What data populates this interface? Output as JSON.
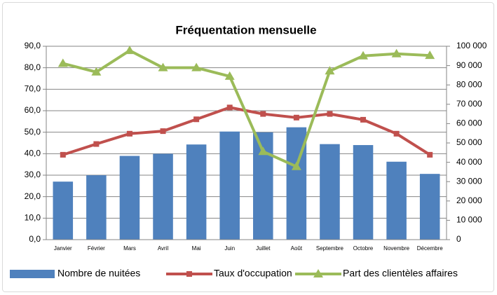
{
  "chart_data": {
    "type": "bar-line",
    "title": "Fréquentation mensuelle",
    "categories": [
      "Janvier",
      "Février",
      "Mars",
      "Avril",
      "Mai",
      "Juin",
      "Juillet",
      "Août",
      "Septembre",
      "Octobre",
      "Novembre",
      "Décembre"
    ],
    "series": [
      {
        "name": "Nombre de nuitées",
        "type": "bar",
        "axis": "y2",
        "color": "#4f81bd",
        "values": [
          30000,
          33300,
          43300,
          44400,
          49200,
          55900,
          55500,
          58100,
          49400,
          48900,
          40300,
          34000
        ]
      },
      {
        "name": "Taux d'occupation",
        "type": "line",
        "marker": "square",
        "color": "#c0504d",
        "values": [
          39.5,
          44.5,
          49.3,
          50.5,
          56,
          61.5,
          58.5,
          56.8,
          58.5,
          55.8,
          49.3,
          39.5
        ]
      },
      {
        "name": "Part des clientèles affaires",
        "type": "line",
        "marker": "triangle",
        "color": "#9bbb59",
        "values": [
          82,
          78,
          88,
          80,
          80,
          76,
          41,
          34,
          78.5,
          85.5,
          86.5,
          85.7
        ]
      }
    ],
    "ylim": [
      0,
      90
    ],
    "yticks": [
      {
        "value": 0,
        "label": "0,0"
      },
      {
        "value": 10,
        "label": "10,0"
      },
      {
        "value": 20,
        "label": "20,0"
      },
      {
        "value": 30,
        "label": "30,0"
      },
      {
        "value": 40,
        "label": "40,0"
      },
      {
        "value": 50,
        "label": "50,0"
      },
      {
        "value": 60,
        "label": "60,0"
      },
      {
        "value": 70,
        "label": "70,0"
      },
      {
        "value": 80,
        "label": "80,0"
      },
      {
        "value": 90,
        "label": "90,0"
      }
    ],
    "y2lim": [
      0,
      100000
    ],
    "y2ticks": [
      0,
      {
        "value": 10000,
        "label": "10 000"
      },
      {
        "value": 20000,
        "label": "20 000"
      },
      {
        "value": 30000,
        "label": "30 000"
      },
      {
        "value": 40000,
        "label": "40 000"
      },
      {
        "value": 50000,
        "label": "50 000"
      },
      {
        "value": 60000,
        "label": "60 000"
      },
      {
        "value": 70000,
        "label": "70 000"
      },
      {
        "value": 80000,
        "label": "80 000"
      },
      {
        "value": 90000,
        "label": "90 000"
      },
      {
        "value": 100000,
        "label": "100 000"
      }
    ],
    "grid": true,
    "legend": "bottom"
  }
}
